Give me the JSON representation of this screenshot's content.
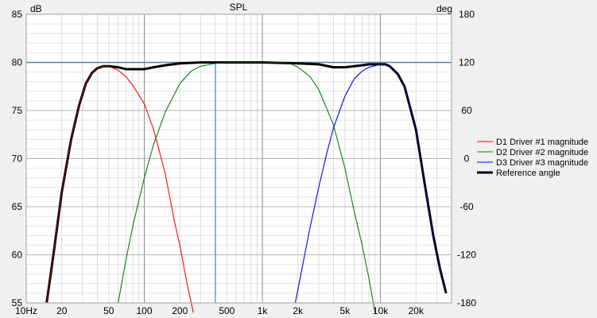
{
  "chart_data": {
    "type": "line",
    "title": "SPL",
    "left_unit": "dB",
    "right_unit": "deg",
    "x_scale": "log",
    "xlim": [
      10,
      40000
    ],
    "ylim": [
      55,
      85
    ],
    "y2lim": [
      -180,
      180
    ],
    "grid": true,
    "legend_position": "right",
    "x_ticks": [
      {
        "v": 10,
        "label": "10Hz"
      },
      {
        "v": 20,
        "label": "20"
      },
      {
        "v": 50,
        "label": "50"
      },
      {
        "v": 100,
        "label": "100"
      },
      {
        "v": 200,
        "label": "200"
      },
      {
        "v": 500,
        "label": "500"
      },
      {
        "v": 1000,
        "label": "1k"
      },
      {
        "v": 2000,
        "label": "2k"
      },
      {
        "v": 5000,
        "label": "5k"
      },
      {
        "v": 10000,
        "label": "10k"
      },
      {
        "v": 20000,
        "label": "20k"
      }
    ],
    "y_ticks": [
      55,
      60,
      65,
      70,
      75,
      80,
      85
    ],
    "y2_ticks": [
      -180,
      -120,
      -60,
      0,
      60,
      120,
      180
    ],
    "reference_level_db": 80,
    "marker_frequency_hz": 400,
    "series": [
      {
        "name": "D1 Driver #1 magnitude",
        "color": "#ff0000",
        "x": [
          14.9,
          17,
          20,
          24,
          28,
          32,
          36,
          40,
          45,
          50,
          60,
          70,
          80,
          100,
          120,
          150,
          180,
          200,
          230,
          260
        ],
        "y": [
          55,
          60,
          66.5,
          72,
          75.5,
          77.8,
          78.9,
          79.4,
          79.6,
          79.6,
          79.2,
          78.5,
          77.6,
          75.7,
          73,
          68.5,
          63.5,
          61,
          57,
          54
        ]
      },
      {
        "name": "D2 Driver #2 magnitude",
        "color": "#008000",
        "x": [
          60,
          70,
          80,
          100,
          120,
          150,
          200,
          250,
          300,
          400,
          500,
          700,
          1000,
          1400,
          1700,
          2000,
          2500,
          3000,
          4000,
          5000,
          6000,
          7000,
          8000,
          9000
        ],
        "y": [
          55,
          59.5,
          63,
          68,
          71.5,
          74.8,
          77.8,
          79.1,
          79.6,
          79.9,
          80,
          80,
          80,
          80,
          79.9,
          79.5,
          78.6,
          77.2,
          73.5,
          69,
          64.5,
          61,
          57.5,
          54
        ]
      },
      {
        "name": "D3 Driver #3 magnitude",
        "color": "#0000ff",
        "x": [
          1900,
          2200,
          2500,
          3000,
          3500,
          4000,
          5000,
          6000,
          7000,
          8000,
          10000,
          11000,
          12000,
          14000,
          16000,
          20000,
          24000,
          28000,
          32000,
          36000
        ],
        "y": [
          55,
          59,
          62.5,
          67,
          70.5,
          73.2,
          76.5,
          78.3,
          79.1,
          79.5,
          79.8,
          79.8,
          79.6,
          78.8,
          77.5,
          73,
          67,
          62,
          58.5,
          56
        ]
      },
      {
        "name": "Reference angle",
        "color": "#000000",
        "x": [
          14.9,
          17,
          20,
          24,
          28,
          32,
          36,
          40,
          45,
          50,
          60,
          70,
          80,
          100,
          120,
          150,
          200,
          300,
          500,
          1000,
          2000,
          3000,
          4000,
          5000,
          6000,
          7000,
          8000,
          10000,
          11000,
          12000,
          14000,
          16000,
          20000,
          24000,
          28000,
          32000,
          36000
        ],
        "y": [
          55,
          60,
          66.5,
          72,
          75.5,
          77.8,
          78.9,
          79.4,
          79.6,
          79.6,
          79.5,
          79.3,
          79.3,
          79.3,
          79.5,
          79.7,
          79.9,
          80,
          80,
          80,
          79.9,
          79.8,
          79.5,
          79.5,
          79.6,
          79.7,
          79.8,
          79.8,
          79.8,
          79.6,
          78.8,
          77.5,
          73,
          67,
          62,
          58.5,
          56
        ]
      }
    ]
  }
}
